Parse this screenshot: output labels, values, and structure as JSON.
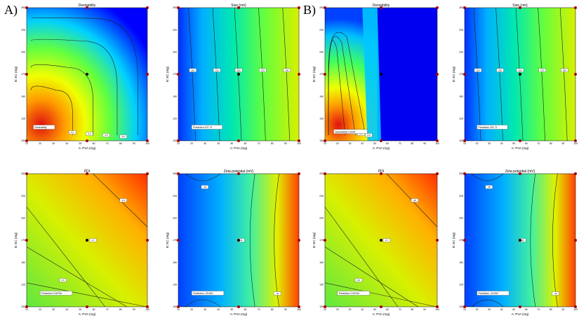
{
  "figure": {
    "panel_labels": [
      "A)",
      "B)"
    ]
  },
  "chart_data": [
    {
      "id": "A-desirability",
      "type": "contour",
      "title": "Desirability",
      "xlabel": "A: PVA (mg)",
      "ylabel": "B: EC (mg)",
      "xticks": [
        "10",
        "20",
        "30",
        "40",
        "50",
        "60",
        "70",
        "80",
        "90",
        "100"
      ],
      "yticks": [
        "100",
        "125",
        "150",
        "175",
        "200",
        "225",
        "250"
      ],
      "xlim": [
        10,
        100
      ],
      "ylim": [
        100,
        250
      ],
      "prediction": {
        "label": "Desirability",
        "value": "",
        "x": 15,
        "y": 115
      },
      "contour_labels": [
        "0.2",
        "0.4",
        "0.6",
        "0.8"
      ],
      "colors": {
        "low": "#0000ff",
        "high": "#ff0000"
      }
    },
    {
      "id": "A-size",
      "type": "contour",
      "title": "Size (nm)",
      "xlabel": "A: PVA (mg)",
      "ylabel": "B: EC (mg)",
      "xticks": [
        "10",
        "20",
        "30",
        "40",
        "50",
        "60",
        "70",
        "80",
        "90",
        "100"
      ],
      "yticks": [
        "100",
        "125",
        "150",
        "175",
        "200",
        "225",
        "250"
      ],
      "xlim": [
        10,
        100
      ],
      "ylim": [
        100,
        250
      ],
      "prediction": {
        "label": "Prediction",
        "value": "207.72",
        "x": 20,
        "y": 115
      },
      "contour_labels": [
        "200",
        "225",
        "250",
        "275",
        "300"
      ]
    },
    {
      "id": "B-desirability",
      "type": "contour",
      "title": "Desirability",
      "xlabel": "A: PVA (mg)",
      "ylabel": "B: EC (mg)",
      "xticks": [
        "10",
        "20",
        "30",
        "40",
        "50",
        "60",
        "70",
        "80",
        "90",
        "100"
      ],
      "yticks": [
        "100",
        "125",
        "150",
        "175",
        "200",
        "225",
        "250"
      ],
      "xlim": [
        10,
        100
      ],
      "ylim": [
        100,
        250
      ],
      "prediction": {
        "label": "Desirability",
        "value": "0.9194",
        "x": 17,
        "y": 110
      },
      "contour_labels": [
        "0.2",
        "0.4",
        "0.6",
        "0.8"
      ]
    },
    {
      "id": "B-size",
      "type": "contour",
      "title": "Size (nm)",
      "xlabel": "A: PVA (mg)",
      "ylabel": "B: EC (mg)",
      "xticks": [
        "10",
        "20",
        "30",
        "40",
        "50",
        "60",
        "70",
        "80",
        "90",
        "100"
      ],
      "yticks": [
        "100",
        "125",
        "150",
        "175",
        "200",
        "225",
        "250"
      ],
      "xlim": [
        10,
        100
      ],
      "ylim": [
        100,
        250
      ],
      "prediction": {
        "label": "Prediction",
        "value": "201.71",
        "x": 20,
        "y": 115
      },
      "contour_labels": [
        "200",
        "225",
        "250",
        "275",
        "300"
      ]
    },
    {
      "id": "A-pdi",
      "type": "contour",
      "title": "PDI",
      "xlabel": "A: PVA (mg)",
      "ylabel": "B: EC (mg)",
      "xticks": [
        "10",
        "20",
        "30",
        "40",
        "50",
        "60",
        "70",
        "80",
        "90",
        "100"
      ],
      "yticks": [
        "100",
        "125",
        "150",
        "175",
        "200",
        "225",
        "250"
      ],
      "xlim": [
        10,
        100
      ],
      "ylim": [
        100,
        250
      ],
      "prediction": {
        "label": "Prediction",
        "value": "0.52754",
        "x": 20,
        "y": 115
      },
      "contour_labels": [
        "0.6",
        "0.7",
        "0.8"
      ]
    },
    {
      "id": "A-zeta",
      "type": "contour",
      "title": "Zeta potential (mV)",
      "xlabel": "A: PVA (mg)",
      "ylabel": "B: EC (mg)",
      "xticks": [
        "10",
        "20",
        "30",
        "40",
        "50",
        "60",
        "70",
        "80",
        "90",
        "100"
      ],
      "yticks": [
        "100",
        "125",
        "150",
        "175",
        "200",
        "225",
        "250"
      ],
      "xlim": [
        10,
        100
      ],
      "ylim": [
        100,
        250
      ],
      "prediction": {
        "label": "Prediction",
        "value": "-29.652",
        "x": 20,
        "y": 115
      },
      "contour_labels": [
        "-28",
        "-26",
        "-24"
      ]
    },
    {
      "id": "B-pdi",
      "type": "contour",
      "title": "PDI",
      "xlabel": "A: PVA (mg)",
      "ylabel": "B: EC (mg)",
      "xticks": [
        "10",
        "20",
        "30",
        "40",
        "50",
        "60",
        "70",
        "80",
        "90",
        "100"
      ],
      "yticks": [
        "100",
        "125",
        "150",
        "175",
        "200",
        "225",
        "250"
      ],
      "xlim": [
        10,
        100
      ],
      "ylim": [
        100,
        250
      ],
      "prediction": {
        "label": "Prediction",
        "value": "0.53764",
        "x": 20,
        "y": 115
      },
      "contour_labels": [
        "0.6",
        "0.7",
        "0.8"
      ]
    },
    {
      "id": "B-zeta",
      "type": "contour",
      "title": "Zeta potential (mV)",
      "xlabel": "A: PVA (mg)",
      "ylabel": "B: EC (mg)",
      "xticks": [
        "10",
        "20",
        "30",
        "40",
        "50",
        "60",
        "70",
        "80",
        "90",
        "100"
      ],
      "yticks": [
        "100",
        "125",
        "150",
        "175",
        "200",
        "225",
        "250"
      ],
      "xlim": [
        10,
        100
      ],
      "ylim": [
        100,
        250
      ],
      "prediction": {
        "label": "Prediction",
        "value": "-29.832",
        "x": 20,
        "y": 115
      },
      "contour_labels": [
        "-28",
        "-26",
        "-24"
      ]
    }
  ]
}
